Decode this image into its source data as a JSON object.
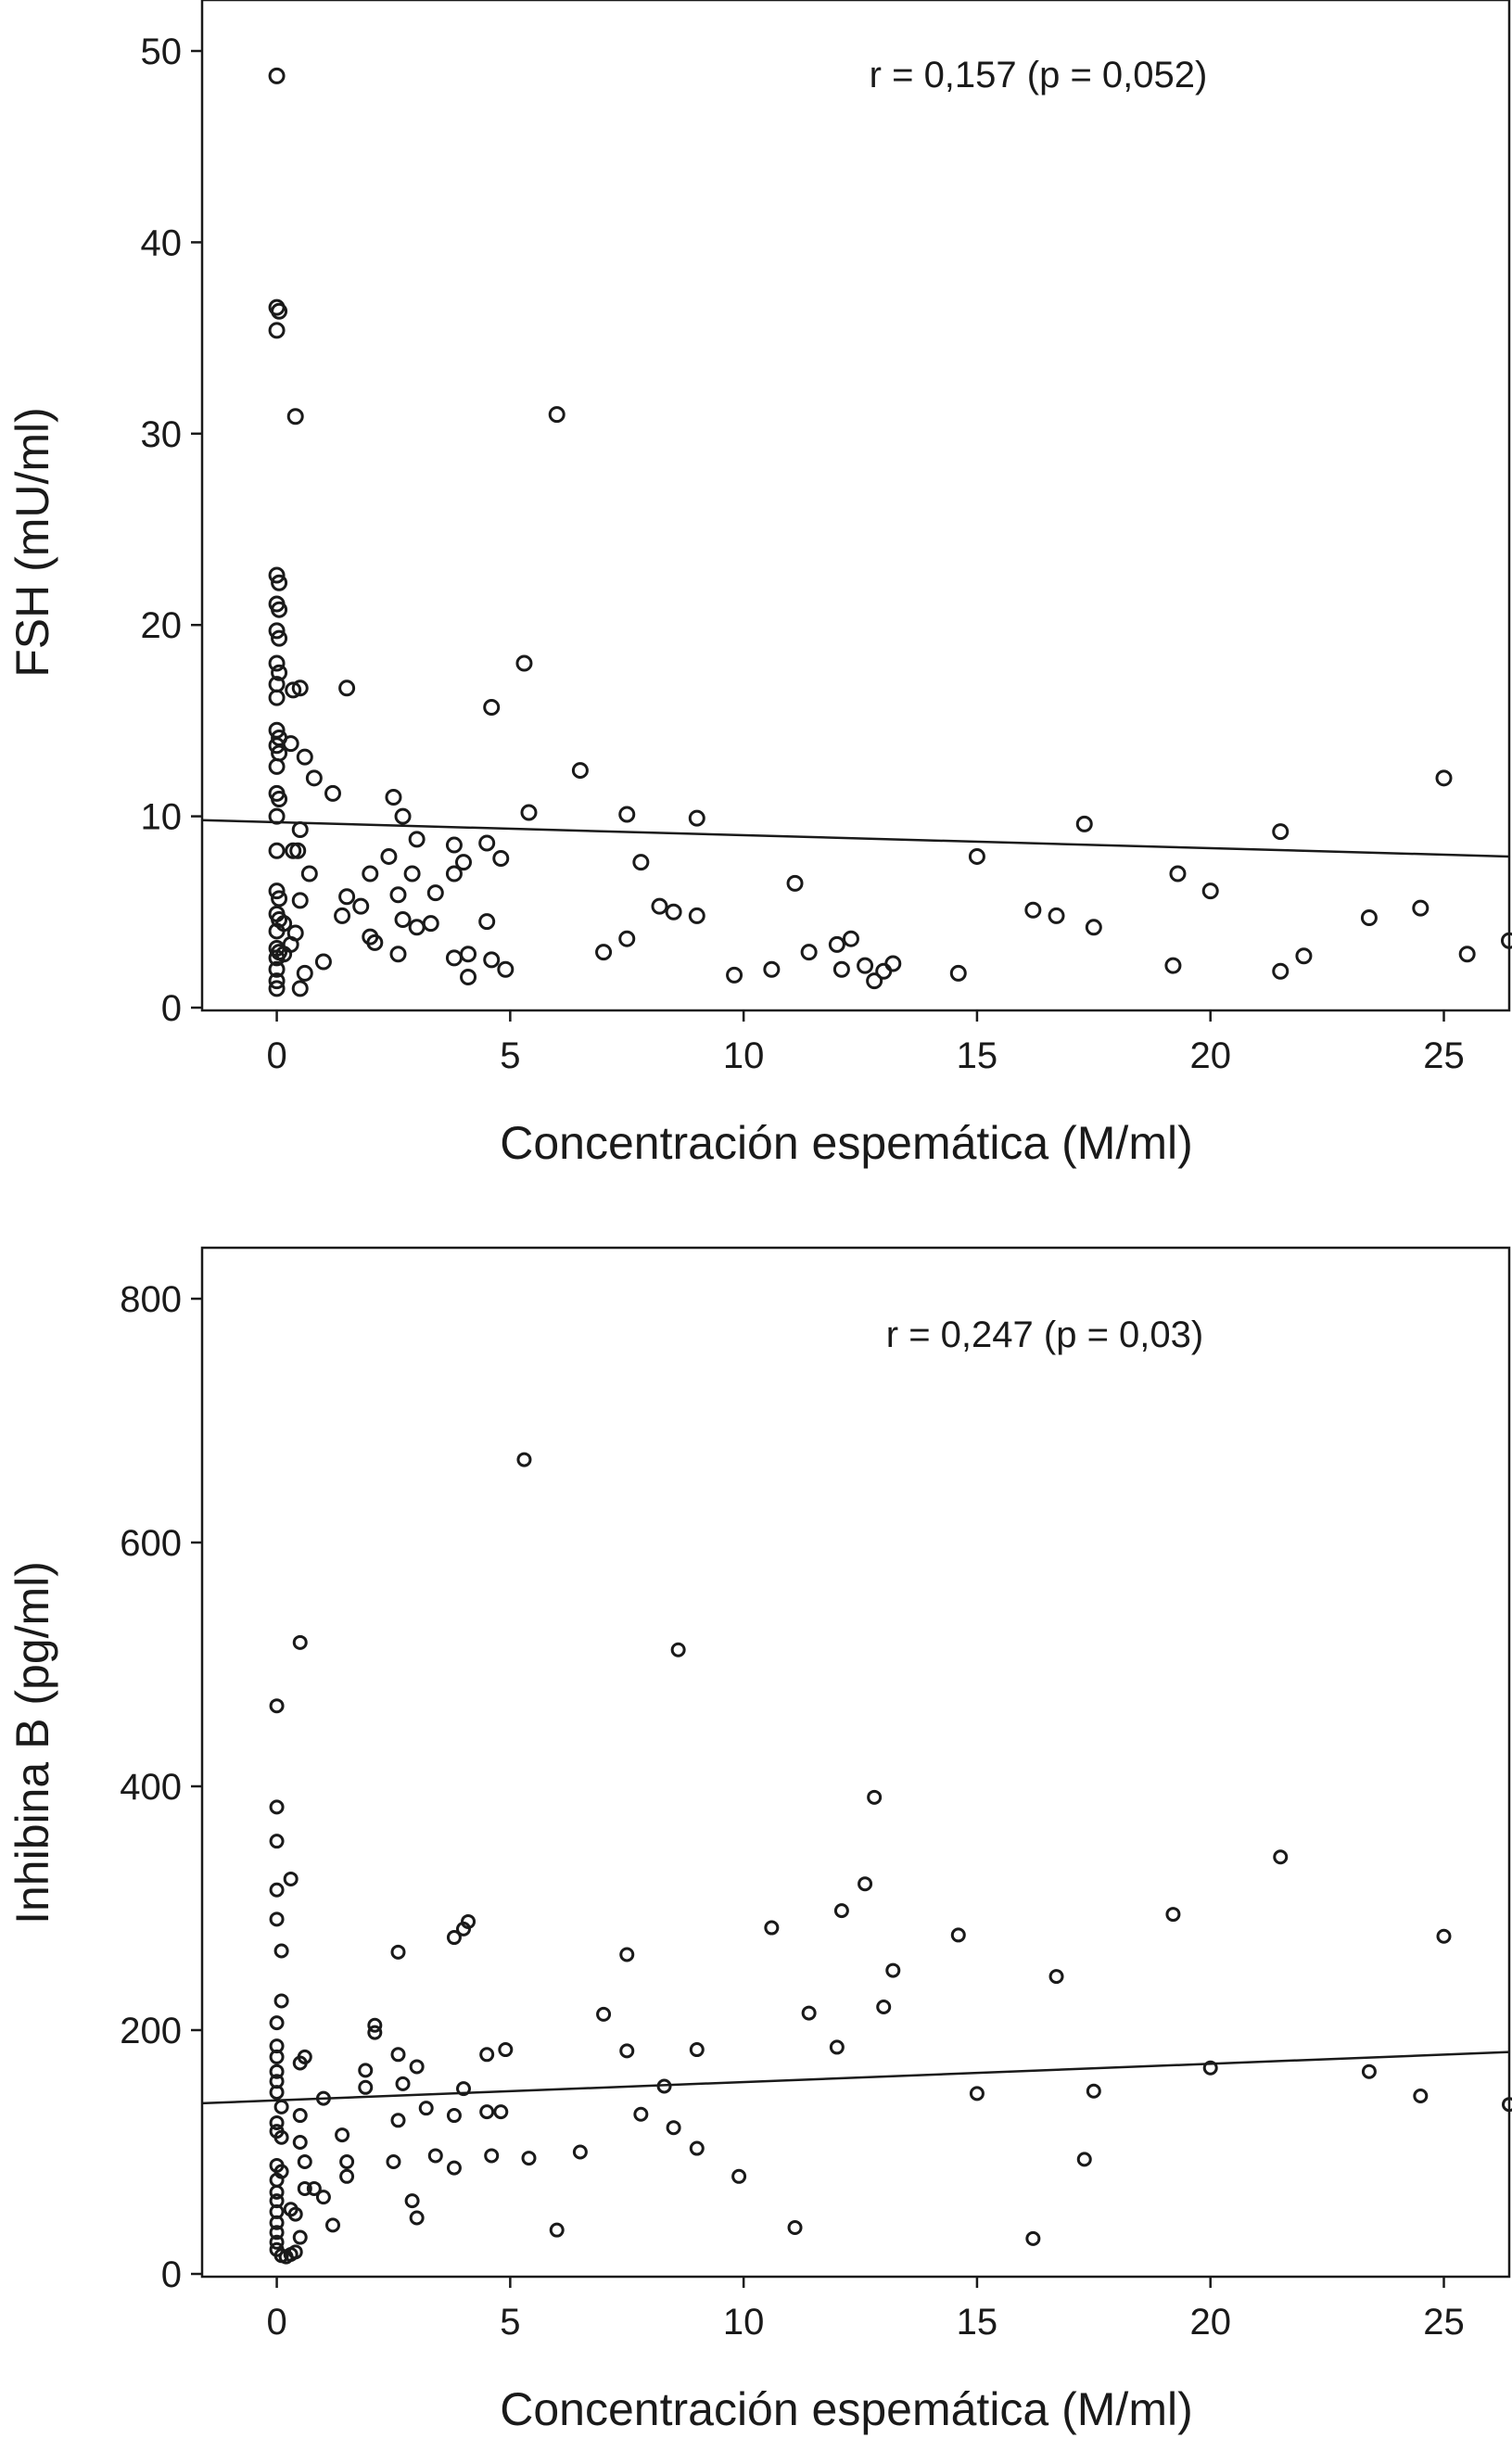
{
  "chart_data": [
    {
      "type": "scatter",
      "title": "",
      "xlabel": "Concentración espemática (M/ml)",
      "ylabel": "FSH (mU/ml)",
      "annotation": "r = 0,157 (p = 0,052)",
      "xlim": [
        -1.6,
        26.4
      ],
      "ylim": [
        0,
        50
      ],
      "x_ticks": [
        0,
        5,
        10,
        15,
        20,
        25
      ],
      "y_ticks": [
        0,
        10,
        20,
        30,
        40,
        50
      ],
      "x_tick_labels": [
        "0",
        "5",
        "10",
        "15",
        "20",
        "25"
      ],
      "y_tick_labels": [
        "0",
        "10",
        "20",
        "30",
        "40",
        "50"
      ],
      "trendline": {
        "x": [
          -1.6,
          26.4
        ],
        "y": [
          9.8,
          7.9
        ]
      },
      "points": [
        [
          0.0,
          48.7
        ],
        [
          0.0,
          36.6
        ],
        [
          0.05,
          36.4
        ],
        [
          0.0,
          35.4
        ],
        [
          0.4,
          30.9
        ],
        [
          0.0,
          22.6
        ],
        [
          0.05,
          22.2
        ],
        [
          0.0,
          21.1
        ],
        [
          0.05,
          20.8
        ],
        [
          0.0,
          19.7
        ],
        [
          0.05,
          19.3
        ],
        [
          0.0,
          18.0
        ],
        [
          0.05,
          17.5
        ],
        [
          0.0,
          16.9
        ],
        [
          0.0,
          16.2
        ],
        [
          0.35,
          16.6
        ],
        [
          0.5,
          16.7
        ],
        [
          0.0,
          14.5
        ],
        [
          0.05,
          14.1
        ],
        [
          0.0,
          13.7
        ],
        [
          0.05,
          13.3
        ],
        [
          0.3,
          13.8
        ],
        [
          0.0,
          12.6
        ],
        [
          0.6,
          13.1
        ],
        [
          0.8,
          12.0
        ],
        [
          0.0,
          11.2
        ],
        [
          0.05,
          10.9
        ],
        [
          1.2,
          11.2
        ],
        [
          0.0,
          10.0
        ],
        [
          0.5,
          9.3
        ],
        [
          0.0,
          8.2
        ],
        [
          0.35,
          8.2
        ],
        [
          0.45,
          8.2
        ],
        [
          0.7,
          7.0
        ],
        [
          0.0,
          6.1
        ],
        [
          0.05,
          5.7
        ],
        [
          0.5,
          5.6
        ],
        [
          0.0,
          4.9
        ],
        [
          0.05,
          4.6
        ],
        [
          0.15,
          4.4
        ],
        [
          0.0,
          4.0
        ],
        [
          0.4,
          3.9
        ],
        [
          0.0,
          3.1
        ],
        [
          0.05,
          2.9
        ],
        [
          0.15,
          2.8
        ],
        [
          0.3,
          3.3
        ],
        [
          0.0,
          2.6
        ],
        [
          0.0,
          2.0
        ],
        [
          0.0,
          1.4
        ],
        [
          0.0,
          1.0
        ],
        [
          0.6,
          1.8
        ],
        [
          0.5,
          1.0
        ],
        [
          1.0,
          2.4
        ],
        [
          1.4,
          4.8
        ],
        [
          1.5,
          5.8
        ],
        [
          1.8,
          5.3
        ],
        [
          1.5,
          16.7
        ],
        [
          2.0,
          7.0
        ],
        [
          2.0,
          3.7
        ],
        [
          2.1,
          3.4
        ],
        [
          2.4,
          7.9
        ],
        [
          2.5,
          11.0
        ],
        [
          2.6,
          2.8
        ],
        [
          2.6,
          5.9
        ],
        [
          2.7,
          4.6
        ],
        [
          2.7,
          10.0
        ],
        [
          2.9,
          7.0
        ],
        [
          3.0,
          4.2
        ],
        [
          3.0,
          8.8
        ],
        [
          3.3,
          4.4
        ],
        [
          3.4,
          6.0
        ],
        [
          3.8,
          8.5
        ],
        [
          3.8,
          7.0
        ],
        [
          3.8,
          2.6
        ],
        [
          4.0,
          7.6
        ],
        [
          4.1,
          2.8
        ],
        [
          4.1,
          1.6
        ],
        [
          4.5,
          8.6
        ],
        [
          4.5,
          4.5
        ],
        [
          4.6,
          2.5
        ],
        [
          4.6,
          15.7
        ],
        [
          4.8,
          7.8
        ],
        [
          4.9,
          2.0
        ],
        [
          5.3,
          18.0
        ],
        [
          5.4,
          10.2
        ],
        [
          6.0,
          31.0
        ],
        [
          6.5,
          12.4
        ],
        [
          7.0,
          2.9
        ],
        [
          7.5,
          3.6
        ],
        [
          7.5,
          10.1
        ],
        [
          7.8,
          7.6
        ],
        [
          8.2,
          5.3
        ],
        [
          8.5,
          5.0
        ],
        [
          9.0,
          4.8
        ],
        [
          9.0,
          9.9
        ],
        [
          9.8,
          1.7
        ],
        [
          10.6,
          2.0
        ],
        [
          11.1,
          6.5
        ],
        [
          11.4,
          2.9
        ],
        [
          12.0,
          3.3
        ],
        [
          12.1,
          2.0
        ],
        [
          12.3,
          3.6
        ],
        [
          12.6,
          2.2
        ],
        [
          12.8,
          1.4
        ],
        [
          13.0,
          1.9
        ],
        [
          13.2,
          2.3
        ],
        [
          14.6,
          1.8
        ],
        [
          15.0,
          7.9
        ],
        [
          16.2,
          5.1
        ],
        [
          16.7,
          4.8
        ],
        [
          17.3,
          9.6
        ],
        [
          17.5,
          4.2
        ],
        [
          19.2,
          2.2
        ],
        [
          19.3,
          7.0
        ],
        [
          20.0,
          6.1
        ],
        [
          21.5,
          9.2
        ],
        [
          21.5,
          1.9
        ],
        [
          22.0,
          2.7
        ],
        [
          23.4,
          4.7
        ],
        [
          24.5,
          5.2
        ],
        [
          25.0,
          12.0
        ],
        [
          25.5,
          2.8
        ],
        [
          26.4,
          3.5
        ]
      ]
    },
    {
      "type": "scatter",
      "title": "",
      "xlabel": "Concentración espemática (M/ml)",
      "ylabel": "Inhibina B (pg/ml)",
      "annotation": "r = 0,247 (p = 0,03)",
      "xlim": [
        -1.6,
        26.4
      ],
      "ylim": [
        0,
        800
      ],
      "x_ticks": [
        0,
        5,
        10,
        15,
        20,
        25
      ],
      "y_ticks": [
        0,
        200,
        400,
        600,
        800
      ],
      "x_tick_labels": [
        "0",
        "5",
        "10",
        "15",
        "20",
        "25"
      ],
      "y_tick_labels": [
        "0",
        "200",
        "400",
        "600",
        "800"
      ],
      "trendline": {
        "x": [
          -1.6,
          26.4
        ],
        "y": [
          140,
          182
        ]
      },
      "points": [
        [
          0.0,
          466
        ],
        [
          0.0,
          383
        ],
        [
          0.0,
          355
        ],
        [
          0.0,
          315
        ],
        [
          0.0,
          291
        ],
        [
          0.1,
          265
        ],
        [
          0.1,
          224
        ],
        [
          0.0,
          206
        ],
        [
          0.0,
          187
        ],
        [
          0.0,
          178
        ],
        [
          0.0,
          166
        ],
        [
          0.0,
          158
        ],
        [
          0.0,
          149
        ],
        [
          0.1,
          137
        ],
        [
          0.0,
          124
        ],
        [
          0.0,
          117
        ],
        [
          0.1,
          112
        ],
        [
          0.0,
          89
        ],
        [
          0.1,
          84
        ],
        [
          0.0,
          77
        ],
        [
          0.0,
          67
        ],
        [
          0.0,
          60
        ],
        [
          0.0,
          51
        ],
        [
          0.0,
          42
        ],
        [
          0.0,
          34
        ],
        [
          0.0,
          26
        ],
        [
          0.0,
          20
        ],
        [
          0.1,
          15
        ],
        [
          0.2,
          14
        ],
        [
          0.3,
          16
        ],
        [
          0.4,
          18
        ],
        [
          0.3,
          53
        ],
        [
          0.4,
          49
        ],
        [
          0.5,
          30
        ],
        [
          0.5,
          108
        ],
        [
          0.5,
          130
        ],
        [
          0.5,
          173
        ],
        [
          0.6,
          178
        ],
        [
          0.6,
          92
        ],
        [
          0.6,
          70
        ],
        [
          0.8,
          70
        ],
        [
          0.3,
          324
        ],
        [
          0.5,
          518
        ],
        [
          1.0,
          144
        ],
        [
          1.0,
          63
        ],
        [
          1.2,
          40
        ],
        [
          1.4,
          114
        ],
        [
          1.5,
          92
        ],
        [
          1.5,
          80
        ],
        [
          1.9,
          167
        ],
        [
          1.9,
          153
        ],
        [
          2.1,
          204
        ],
        [
          2.1,
          198
        ],
        [
          2.5,
          92
        ],
        [
          2.6,
          126
        ],
        [
          2.6,
          180
        ],
        [
          2.7,
          156
        ],
        [
          2.6,
          264
        ],
        [
          2.9,
          60
        ],
        [
          3.0,
          46
        ],
        [
          3.0,
          170
        ],
        [
          3.2,
          136
        ],
        [
          3.4,
          97
        ],
        [
          3.8,
          87
        ],
        [
          3.8,
          130
        ],
        [
          3.8,
          276
        ],
        [
          4.0,
          283
        ],
        [
          4.1,
          289
        ],
        [
          4.0,
          152
        ],
        [
          4.5,
          133
        ],
        [
          4.5,
          180
        ],
        [
          4.6,
          97
        ],
        [
          4.8,
          133
        ],
        [
          4.9,
          184
        ],
        [
          5.3,
          668
        ],
        [
          5.4,
          95
        ],
        [
          6.0,
          36
        ],
        [
          6.5,
          100
        ],
        [
          7.0,
          213
        ],
        [
          7.5,
          183
        ],
        [
          7.5,
          262
        ],
        [
          7.8,
          131
        ],
        [
          8.3,
          154
        ],
        [
          8.5,
          120
        ],
        [
          8.6,
          512
        ],
        [
          9.0,
          184
        ],
        [
          9.0,
          103
        ],
        [
          9.9,
          80
        ],
        [
          10.6,
          284
        ],
        [
          11.1,
          38
        ],
        [
          11.4,
          214
        ],
        [
          12.0,
          186
        ],
        [
          12.1,
          298
        ],
        [
          12.6,
          320
        ],
        [
          12.8,
          391
        ],
        [
          13.0,
          219
        ],
        [
          13.2,
          249
        ],
        [
          14.6,
          278
        ],
        [
          15.0,
          148
        ],
        [
          16.2,
          29
        ],
        [
          16.7,
          244
        ],
        [
          17.3,
          94
        ],
        [
          17.5,
          150
        ],
        [
          19.2,
          295
        ],
        [
          20.0,
          169
        ],
        [
          21.5,
          342
        ],
        [
          23.4,
          166
        ],
        [
          24.5,
          146
        ],
        [
          25.0,
          277
        ],
        [
          26.4,
          139
        ]
      ]
    }
  ]
}
